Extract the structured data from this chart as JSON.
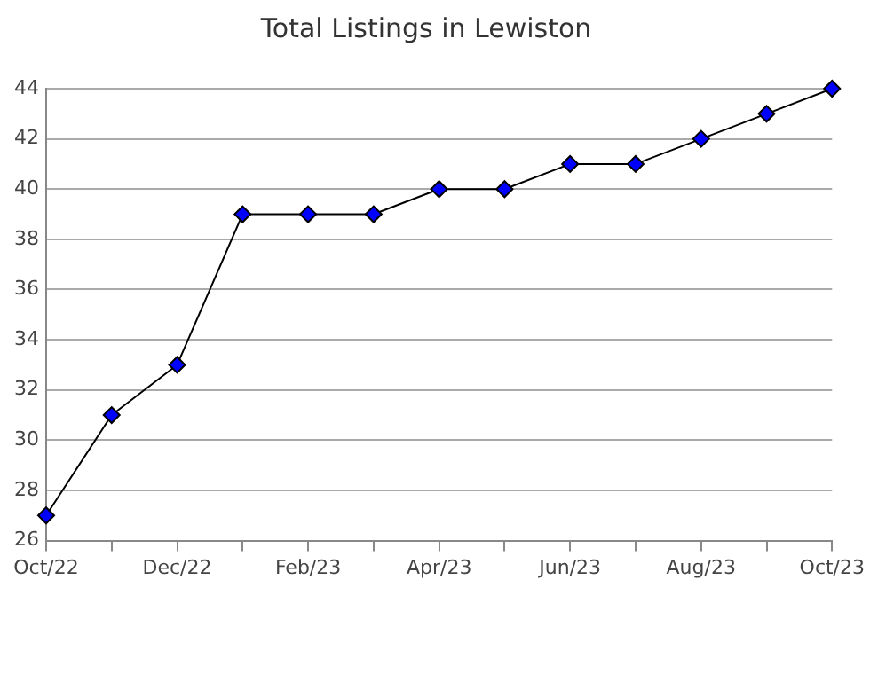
{
  "chart_data": {
    "type": "line",
    "title": "Total Listings in Lewiston",
    "categories": [
      "Oct/22",
      null,
      "Dec/22",
      null,
      "Feb/23",
      null,
      "Apr/23",
      null,
      "Jun/23",
      null,
      "Aug/23",
      null,
      "Oct/23"
    ],
    "series": [
      {
        "color": "#0000ff",
        "values": [
          27,
          31,
          33,
          39,
          39,
          39,
          40,
          40,
          41,
          41,
          42,
          43,
          44
        ]
      }
    ],
    "ylim": [
      26,
      44
    ],
    "yticks": [
      26,
      28,
      30,
      32,
      34,
      36,
      38,
      40,
      42,
      44
    ],
    "grid": "y",
    "marker": "diamond",
    "line_style": "solid",
    "legend": false
  }
}
